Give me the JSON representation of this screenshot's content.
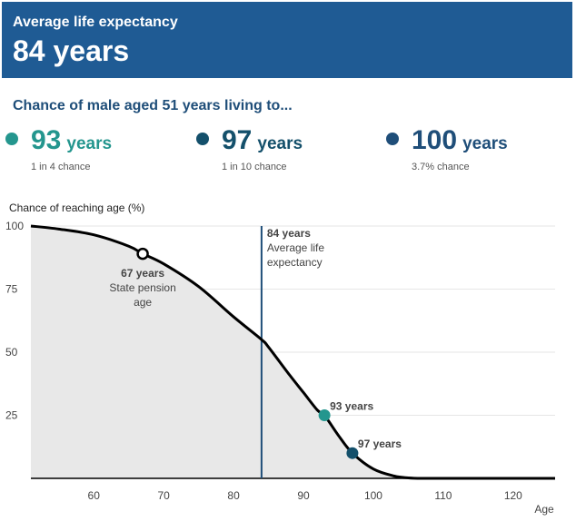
{
  "banner": {
    "label": "Average life expectancy",
    "value": "84 years"
  },
  "subtitle": "Chance of male aged 51 years living to...",
  "stats": [
    {
      "number": "93",
      "unit": "years",
      "chance": "1 in 4 chance",
      "color": "#24968e"
    },
    {
      "number": "97",
      "unit": "years",
      "chance": "1 in 10 chance",
      "color": "#14506b"
    },
    {
      "number": "100",
      "unit": "years",
      "chance": "3.7% chance",
      "color": "#1f4e79"
    }
  ],
  "colors": {
    "banner": "#1f5b94",
    "teal": "#24968e",
    "dark_teal": "#14506b",
    "navy": "#1f4e79",
    "area_fill": "#e8e8e8",
    "curve": "#000000"
  },
  "chart_data": {
    "type": "area",
    "ylabel": "Chance of reaching age (%)",
    "xlabel": "Age",
    "xlim": [
      51,
      126
    ],
    "ylim": [
      0,
      100
    ],
    "xticks": [
      60,
      70,
      80,
      90,
      100,
      110,
      120
    ],
    "yticks": [
      25,
      50,
      75,
      100
    ],
    "grid": true,
    "series": [
      {
        "x": [
          51,
          55,
          60,
          65,
          67,
          70,
          75,
          80,
          84,
          85,
          88,
          90,
          92,
          93,
          95,
          97,
          100,
          103,
          105,
          107,
          110,
          126
        ],
        "y": [
          100,
          98.8,
          96.5,
          92,
          89,
          85,
          76,
          64,
          55,
          52,
          41,
          34,
          27,
          25,
          17,
          10,
          3.7,
          0.9,
          0.2,
          0,
          0,
          0
        ]
      }
    ],
    "reference_line": {
      "x": 84,
      "label": "84 years",
      "sublabel_line1": "Average life",
      "sublabel_line2": "expectancy"
    },
    "annotations": [
      {
        "x": 67,
        "y": 89,
        "label": "67 years",
        "sublabel_line1": "State pension",
        "sublabel_line2": "age",
        "style": "hollow"
      },
      {
        "x": 93,
        "y": 25,
        "label": "93 years",
        "color": "#24968e",
        "style": "filled"
      },
      {
        "x": 97,
        "y": 10,
        "label": "97 years",
        "color": "#14506b",
        "style": "filled"
      }
    ]
  }
}
